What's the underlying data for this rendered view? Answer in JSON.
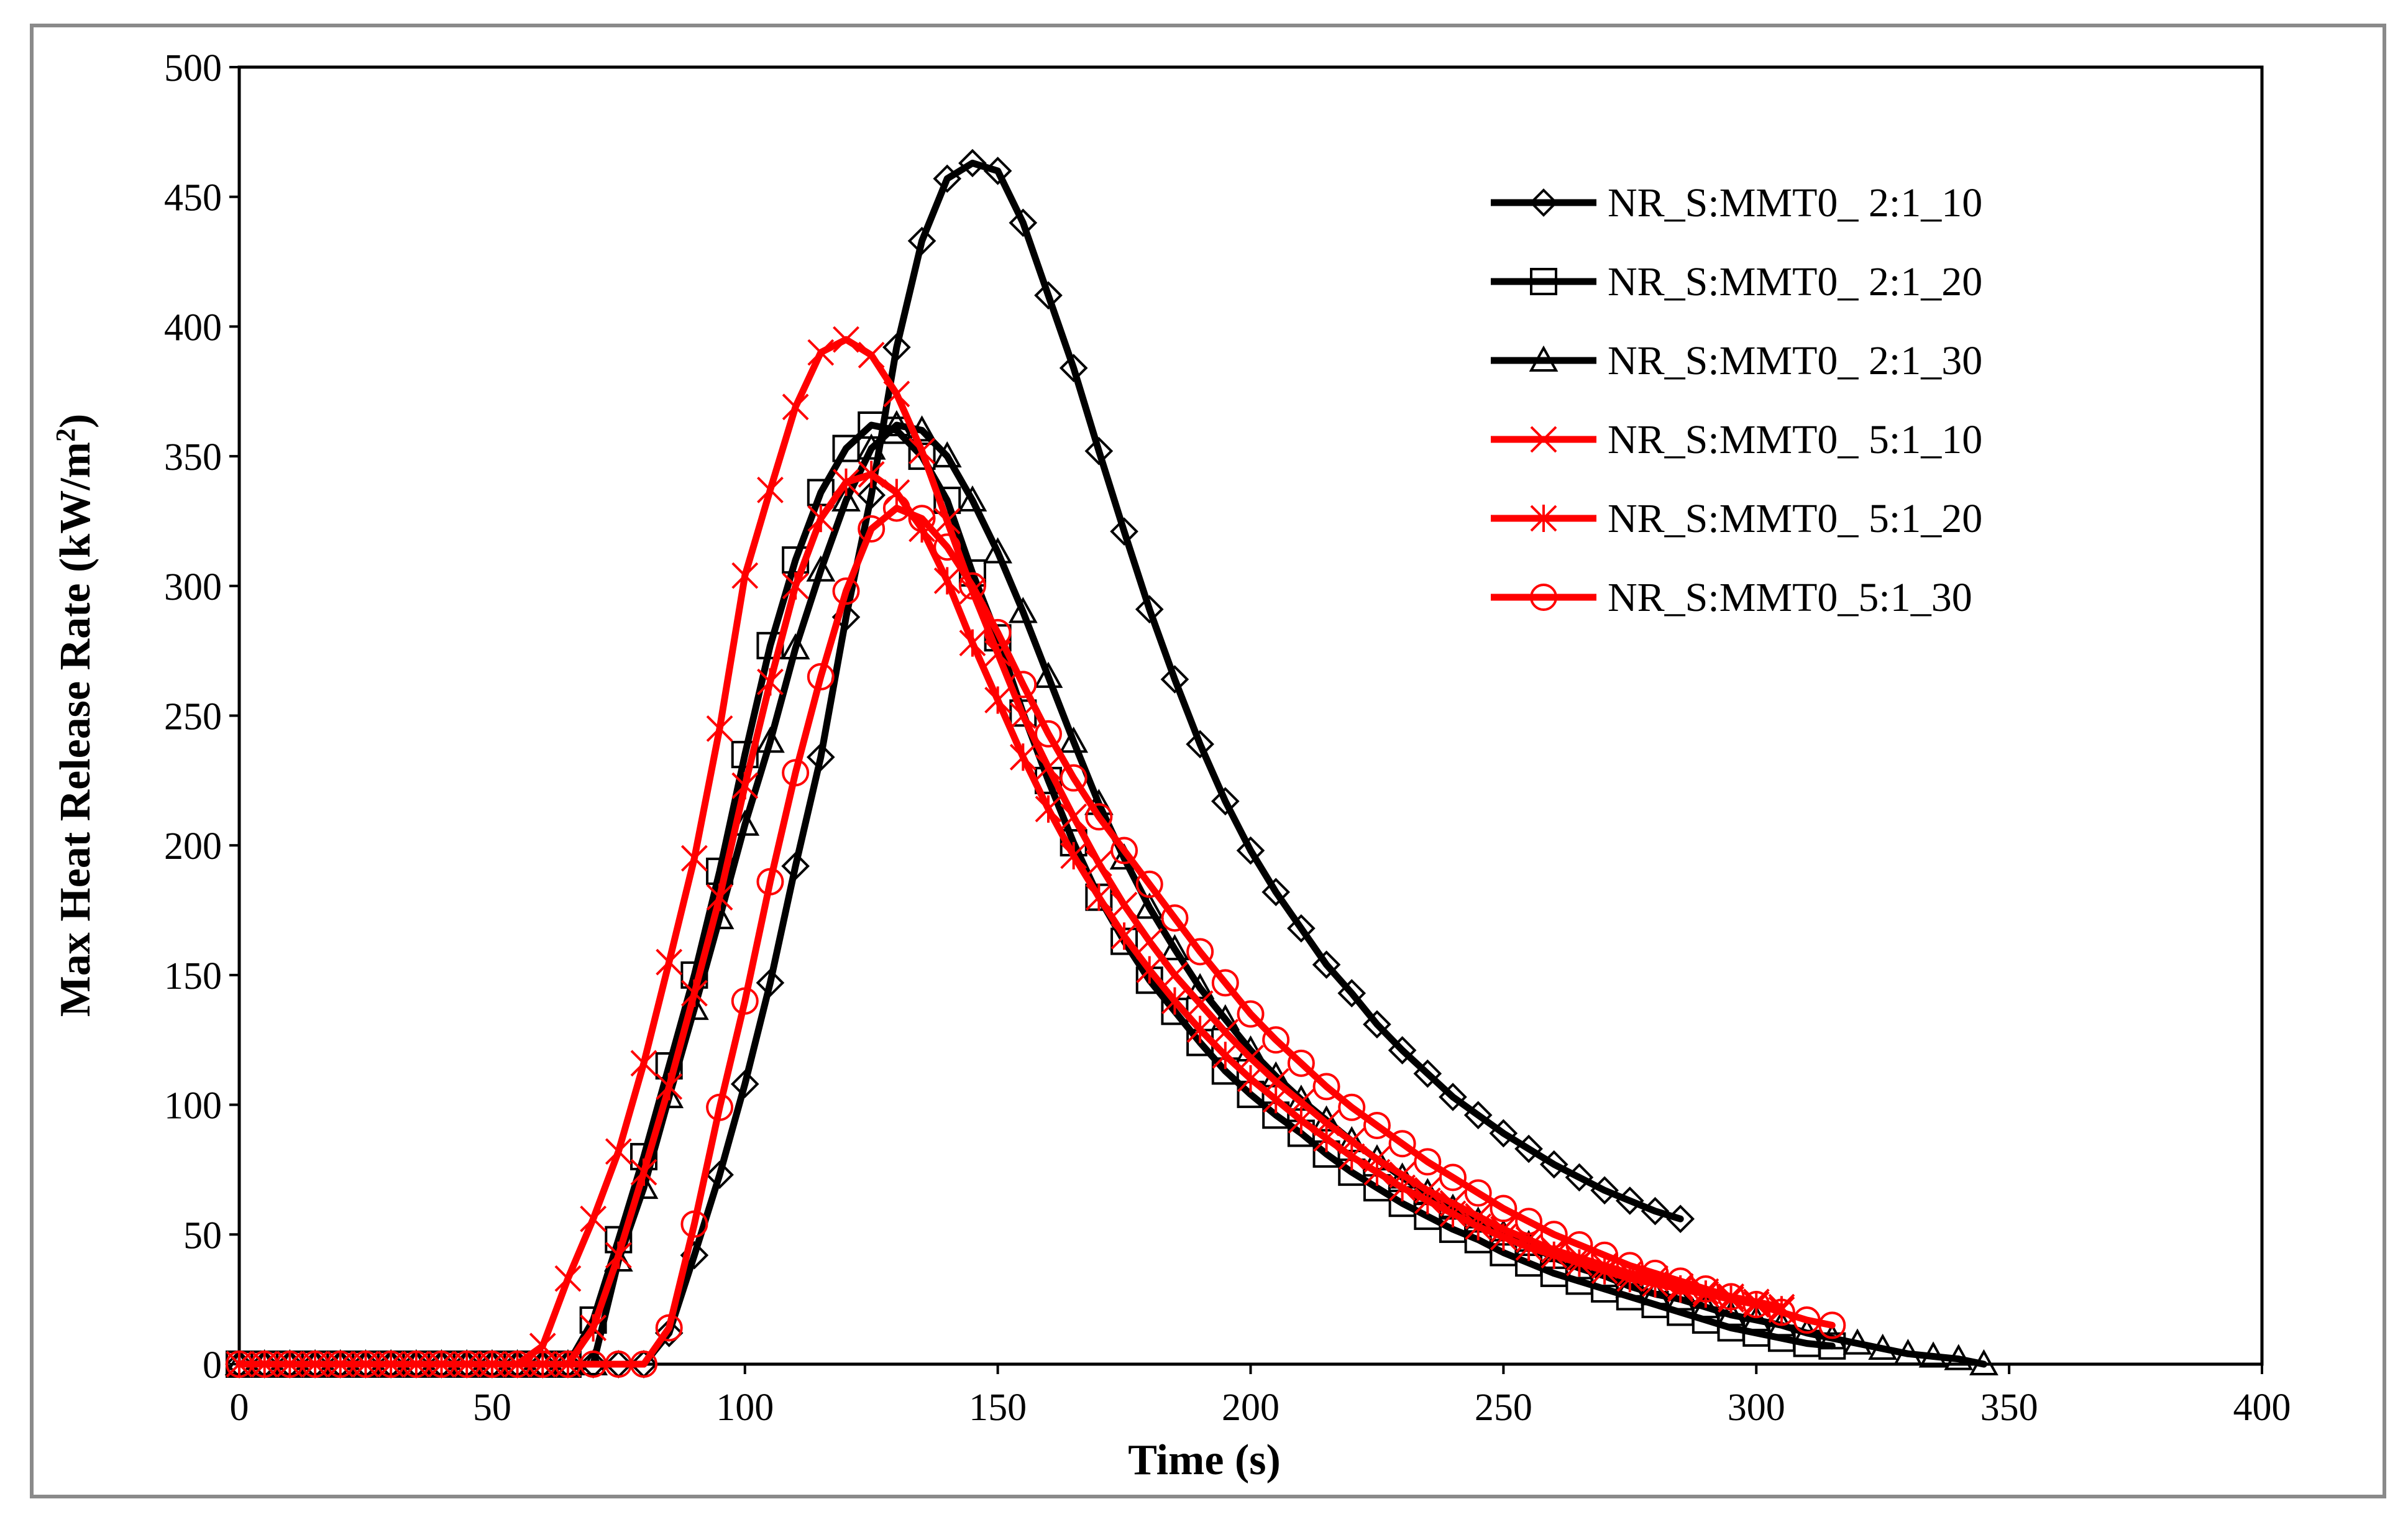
{
  "chart_data": {
    "type": "line",
    "title": "",
    "xlabel": "Time (s)",
    "ylabel_main": "Max Heat Release Rate (kW/m",
    "ylabel_sup": "2",
    "ylabel_end": ")",
    "xlim": [
      0,
      400
    ],
    "ylim": [
      0,
      500
    ],
    "xticks": [
      0,
      50,
      100,
      150,
      200,
      250,
      300,
      350,
      400
    ],
    "yticks": [
      0,
      50,
      100,
      150,
      200,
      250,
      300,
      350,
      400,
      450,
      500
    ],
    "grid": false,
    "legend_position": "top-right",
    "series": [
      {
        "name": "NR_S:MMT0_ 2:1_10",
        "color": "#000000",
        "marker": "diamond",
        "onset": 83,
        "peak_time": 145,
        "peak_value": 463,
        "end_time": 285,
        "x": [
          0,
          5,
          10,
          15,
          20,
          25,
          30,
          35,
          40,
          45,
          50,
          55,
          60,
          65,
          70,
          75,
          80,
          85,
          90,
          95,
          100,
          105,
          110,
          115,
          120,
          125,
          130,
          135,
          140,
          145,
          150,
          155,
          160,
          165,
          170,
          175,
          180,
          185,
          190,
          195,
          200,
          205,
          210,
          215,
          220,
          225,
          230,
          235,
          240,
          245,
          250,
          255,
          260,
          265,
          270,
          275,
          280,
          285
        ],
        "values": [
          0,
          0,
          0,
          0,
          0,
          0,
          0,
          0,
          0,
          0,
          0,
          0,
          0,
          0,
          0,
          0,
          0,
          12,
          42,
          73,
          108,
          147,
          192,
          234,
          288,
          335,
          392,
          433,
          457,
          463,
          460,
          440,
          412,
          384,
          352,
          321,
          291,
          264,
          239,
          217,
          198,
          182,
          168,
          154,
          143,
          131,
          121,
          112,
          103,
          96,
          89,
          83,
          77,
          72,
          67,
          63,
          59,
          56
        ]
      },
      {
        "name": "NR_S:MMT0_ 2:1_20",
        "color": "#000000",
        "marker": "square",
        "onset": 68,
        "peak_time": 126,
        "peak_value": 363,
        "end_time": 315,
        "x": [
          0,
          5,
          10,
          15,
          20,
          25,
          30,
          35,
          40,
          45,
          50,
          55,
          60,
          65,
          70,
          75,
          80,
          85,
          90,
          95,
          100,
          105,
          110,
          115,
          120,
          125,
          130,
          135,
          140,
          145,
          150,
          155,
          160,
          165,
          170,
          175,
          180,
          185,
          190,
          195,
          200,
          205,
          210,
          215,
          220,
          225,
          230,
          235,
          240,
          245,
          250,
          255,
          260,
          265,
          270,
          275,
          280,
          285,
          290,
          295,
          300,
          305,
          310,
          315
        ],
        "values": [
          0,
          0,
          0,
          0,
          0,
          0,
          0,
          0,
          0,
          0,
          0,
          0,
          0,
          0,
          17,
          48,
          80,
          115,
          150,
          190,
          235,
          277,
          310,
          336,
          353,
          362,
          360,
          350,
          333,
          305,
          280,
          251,
          225,
          201,
          180,
          163,
          148,
          136,
          124,
          113,
          104,
          96,
          89,
          81,
          74,
          68,
          62,
          57,
          52,
          48,
          43,
          39,
          35,
          32,
          29,
          26,
          23,
          20,
          17,
          14,
          12,
          10,
          8,
          7
        ]
      },
      {
        "name": "NR_S:MMT0_ 2:1_30",
        "color": "#000000",
        "marker": "triangle",
        "onset": 72,
        "peak_time": 130,
        "peak_value": 362,
        "end_time": 345,
        "x": [
          0,
          5,
          10,
          15,
          20,
          25,
          30,
          35,
          40,
          45,
          50,
          55,
          60,
          65,
          70,
          75,
          80,
          85,
          90,
          95,
          100,
          105,
          110,
          115,
          120,
          125,
          130,
          135,
          140,
          145,
          150,
          155,
          160,
          165,
          170,
          175,
          180,
          185,
          190,
          195,
          200,
          205,
          210,
          215,
          220,
          225,
          230,
          235,
          240,
          245,
          250,
          255,
          260,
          265,
          270,
          275,
          280,
          285,
          290,
          295,
          300,
          305,
          310,
          315,
          320,
          325,
          330,
          335,
          340,
          345
        ],
        "values": [
          0,
          0,
          0,
          0,
          0,
          0,
          0,
          0,
          0,
          0,
          0,
          0,
          0,
          0,
          0,
          40,
          68,
          103,
          137,
          172,
          208,
          240,
          276,
          306,
          333,
          353,
          362,
          360,
          350,
          333,
          313,
          290,
          265,
          240,
          216,
          195,
          176,
          160,
          145,
          133,
          121,
          111,
          102,
          94,
          86,
          79,
          72,
          66,
          60,
          55,
          50,
          46,
          41,
          37,
          34,
          30,
          27,
          25,
          22,
          19,
          17,
          15,
          12,
          10,
          8,
          6,
          4,
          3,
          2,
          0
        ]
      },
      {
        "name": "NR_S:MMT0_ 5:1_10",
        "color": "#ff0000",
        "marker": "x",
        "onset": 60,
        "peak_time": 120,
        "peak_value": 395,
        "end_time": 305,
        "x": [
          0,
          5,
          10,
          15,
          20,
          25,
          30,
          35,
          40,
          45,
          50,
          55,
          60,
          65,
          70,
          75,
          80,
          85,
          90,
          95,
          100,
          105,
          110,
          115,
          120,
          125,
          130,
          135,
          140,
          145,
          150,
          155,
          160,
          165,
          170,
          175,
          180,
          185,
          190,
          195,
          200,
          205,
          210,
          215,
          220,
          225,
          230,
          235,
          240,
          245,
          250,
          255,
          260,
          265,
          270,
          275,
          280,
          285,
          290,
          295,
          300,
          305
        ],
        "values": [
          0,
          0,
          0,
          0,
          0,
          0,
          0,
          0,
          0,
          0,
          0,
          0,
          7,
          33,
          56,
          82,
          116,
          155,
          195,
          245,
          304,
          337,
          369,
          390,
          395,
          389,
          374,
          352,
          325,
          298,
          274,
          250,
          230,
          211,
          193,
          177,
          163,
          150,
          139,
          128,
          118,
          109,
          101,
          93,
          86,
          79,
          73,
          67,
          62,
          57,
          52,
          48,
          44,
          41,
          38,
          35,
          33,
          30,
          28,
          26,
          24,
          22
        ]
      },
      {
        "name": "NR_S:MMT0_ 5:1_20",
        "color": "#ff0000",
        "marker": "asterisk",
        "onset": 69,
        "peak_time": 125,
        "peak_value": 343,
        "end_time": 305,
        "x": [
          0,
          5,
          10,
          15,
          20,
          25,
          30,
          35,
          40,
          45,
          50,
          55,
          60,
          65,
          70,
          75,
          80,
          85,
          90,
          95,
          100,
          105,
          110,
          115,
          120,
          125,
          130,
          135,
          140,
          145,
          150,
          155,
          160,
          165,
          170,
          175,
          180,
          185,
          190,
          195,
          200,
          205,
          210,
          215,
          220,
          225,
          230,
          235,
          240,
          245,
          250,
          255,
          260,
          265,
          270,
          275,
          280,
          285,
          290,
          295,
          300,
          305
        ],
        "values": [
          0,
          0,
          0,
          0,
          0,
          0,
          0,
          0,
          0,
          0,
          0,
          0,
          0,
          0,
          14,
          42,
          74,
          107,
          143,
          180,
          223,
          263,
          300,
          326,
          340,
          343,
          336,
          322,
          302,
          278,
          256,
          234,
          214,
          196,
          180,
          165,
          152,
          140,
          129,
          119,
          110,
          102,
          94,
          87,
          80,
          74,
          68,
          63,
          58,
          53,
          49,
          45,
          42,
          39,
          36,
          33,
          31,
          29,
          27,
          25,
          23,
          21
        ]
      },
      {
        "name": "NR_S:MMT0_5:1_30",
        "color": "#ff0000",
        "marker": "circle",
        "onset": 82,
        "peak_time": 132,
        "peak_value": 330,
        "end_time": 315,
        "x": [
          0,
          5,
          10,
          15,
          20,
          25,
          30,
          35,
          40,
          45,
          50,
          55,
          60,
          65,
          70,
          75,
          80,
          85,
          90,
          95,
          100,
          105,
          110,
          115,
          120,
          125,
          130,
          135,
          140,
          145,
          150,
          155,
          160,
          165,
          170,
          175,
          180,
          185,
          190,
          195,
          200,
          205,
          210,
          215,
          220,
          225,
          230,
          235,
          240,
          245,
          250,
          255,
          260,
          265,
          270,
          275,
          280,
          285,
          290,
          295,
          300,
          305,
          310,
          315
        ],
        "values": [
          0,
          0,
          0,
          0,
          0,
          0,
          0,
          0,
          0,
          0,
          0,
          0,
          0,
          0,
          0,
          0,
          0,
          14,
          54,
          99,
          140,
          186,
          228,
          265,
          298,
          322,
          330,
          326,
          315,
          300,
          282,
          262,
          243,
          226,
          211,
          198,
          185,
          172,
          159,
          147,
          135,
          125,
          116,
          107,
          99,
          92,
          85,
          78,
          72,
          66,
          60,
          55,
          50,
          46,
          42,
          38,
          35,
          32,
          29,
          26,
          23,
          20,
          17,
          15
        ]
      }
    ]
  }
}
